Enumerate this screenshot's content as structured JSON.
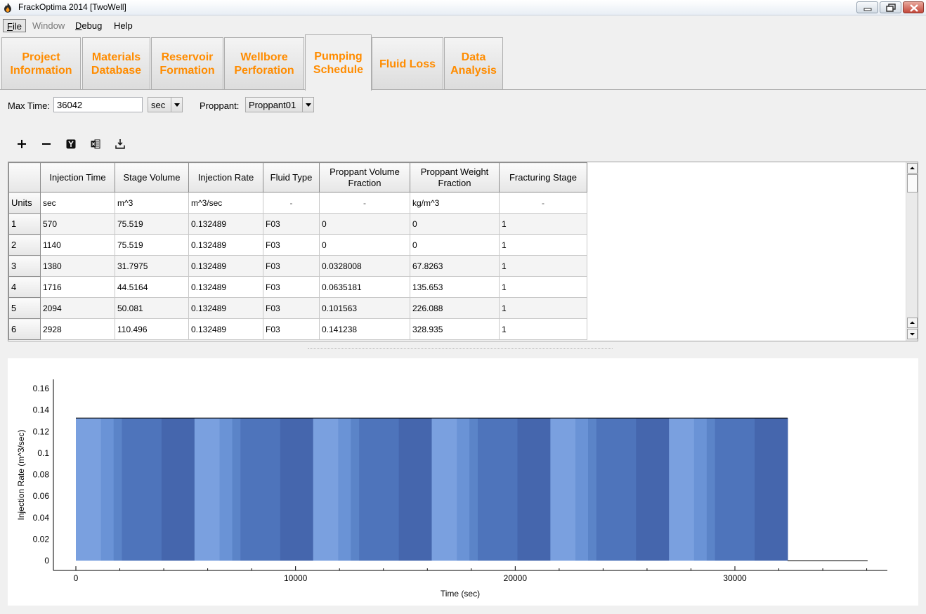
{
  "window": {
    "title": "FrackOptima 2014 [TwoWell]"
  },
  "menu": {
    "items": [
      {
        "label": "File",
        "hotkey": "F",
        "rest": "ile",
        "state": "active"
      },
      {
        "label": "Window",
        "state": "disabled"
      },
      {
        "label": "Debug",
        "hotkey": "D",
        "rest": "ebug",
        "state": "normal"
      },
      {
        "label": "Help",
        "state": "normal"
      }
    ]
  },
  "tabs": [
    {
      "label": "Project\nInformation"
    },
    {
      "label": "Materials\nDatabase"
    },
    {
      "label": "Reservoir\nFormation"
    },
    {
      "label": "Wellbore\nPerforation"
    },
    {
      "label": "Pumping\nSchedule",
      "active": true
    },
    {
      "label": "Fluid Loss"
    },
    {
      "label": "Data\nAnalysis"
    }
  ],
  "form": {
    "max_time_label": "Max Time:",
    "max_time_value": "36042",
    "unit_value": "sec",
    "proppant_label": "Proppant:",
    "proppant_value": "Proppant01"
  },
  "toolbar": {
    "icons": [
      "add-row-icon",
      "remove-row-icon",
      "y-axis-icon",
      "excel-export-icon",
      "import-icon"
    ]
  },
  "table": {
    "headers": [
      "",
      "Injection Time",
      "Stage Volume",
      "Injection Rate",
      "Fluid Type",
      "Proppant Volume\nFraction",
      "Proppant Weight\nFraction",
      "Fracturing Stage"
    ],
    "units_row": [
      "Units",
      "sec",
      "m^3",
      "m^3/sec",
      "-",
      "-",
      "kg/m^3",
      "-"
    ],
    "rows": [
      [
        "1",
        "570",
        "75.519",
        "0.132489",
        "F03",
        "0",
        "0",
        "1"
      ],
      [
        "2",
        "1140",
        "75.519",
        "0.132489",
        "F03",
        "0",
        "0",
        "1"
      ],
      [
        "3",
        "1380",
        "31.7975",
        "0.132489",
        "F03",
        "0.0328008",
        "67.8263",
        "1"
      ],
      [
        "4",
        "1716",
        "44.5164",
        "0.132489",
        "F03",
        "0.0635181",
        "135.653",
        "1"
      ],
      [
        "5",
        "2094",
        "50.081",
        "0.132489",
        "F03",
        "0.101563",
        "226.088",
        "1"
      ],
      [
        "6",
        "2928",
        "110.496",
        "0.132489",
        "F03",
        "0.141238",
        "328.935",
        "1"
      ]
    ]
  },
  "chart_data": {
    "type": "area",
    "xlabel": "Time (sec)",
    "ylabel": "Injection Rate (m^3/sec)",
    "xlim": [
      0,
      36042
    ],
    "ylim": [
      0,
      0.16
    ],
    "xticks": [
      "0",
      "10000",
      "20000",
      "30000"
    ],
    "yticks": [
      "0",
      "0.02",
      "0.04",
      "0.06",
      "0.08",
      "0.1",
      "0.12",
      "0.14",
      "0.16"
    ],
    "rate": 0.132489,
    "rate_end_time": 32400,
    "stage_starts": [
      0,
      5400,
      10800,
      16200,
      21600,
      27000
    ],
    "stage_sub_times": [
      0,
      1140,
      1716,
      2094,
      2928,
      3900
    ],
    "colors": {
      "pad": "#7aa0df",
      "band1": "#6a93d6",
      "band2": "#5b84c8",
      "band3": "#4e74bb",
      "band4": "#4566ad",
      "outline": "#000000"
    }
  }
}
